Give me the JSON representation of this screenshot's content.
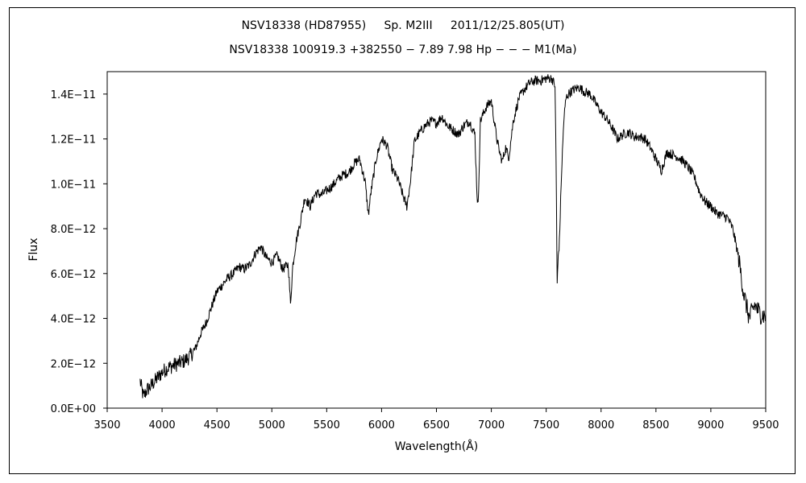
{
  "chart_data": {
    "type": "line",
    "title": "NSV18338 (HD87955)     Sp. M2III     2011/12/25.805(UT)",
    "subtitle": "NSV18338 100919.3 +382550 − 7.89 7.98 Hp − − − M1(Ma)",
    "xlabel": "Wavelength(Å)",
    "ylabel": "Flux",
    "xlim": [
      3500,
      9500
    ],
    "ylim": [
      0,
      1.5e-11
    ],
    "x_ticks": [
      3500,
      4000,
      4500,
      5000,
      5500,
      6000,
      6500,
      7000,
      7500,
      8000,
      8500,
      9000,
      9500
    ],
    "x_tick_labels": [
      "3500",
      "4000",
      "4500",
      "5000",
      "5500",
      "6000",
      "6500",
      "7000",
      "7500",
      "8000",
      "8500",
      "9000",
      "9500"
    ],
    "y_ticks": [
      0,
      2e-12,
      4e-12,
      6e-12,
      8e-12,
      1e-11,
      1.2e-11,
      1.4e-11
    ],
    "y_tick_labels": [
      "0.0E+00",
      "2.0E−12",
      "4.0E−12",
      "6.0E−12",
      "8.0E−12",
      "1.0E−11",
      "1.2E−11",
      "1.4E−11"
    ],
    "grid": false,
    "series": [
      {
        "x": [
          3800,
          3830,
          3860,
          3900,
          3950,
          4000,
          4050,
          4100,
          4150,
          4200,
          4250,
          4300,
          4350,
          4400,
          4450,
          4500,
          4550,
          4600,
          4650,
          4700,
          4750,
          4800,
          4850,
          4900,
          4950,
          5000,
          5050,
          5100,
          5150,
          5170,
          5190,
          5220,
          5260,
          5300,
          5350,
          5400,
          5450,
          5500,
          5550,
          5600,
          5650,
          5700,
          5750,
          5800,
          5850,
          5880,
          5900,
          5950,
          6000,
          6050,
          6100,
          6150,
          6200,
          6230,
          6260,
          6300,
          6350,
          6400,
          6450,
          6500,
          6550,
          6600,
          6650,
          6700,
          6750,
          6800,
          6850,
          6870,
          6880,
          6900,
          6950,
          7000,
          7050,
          7080,
          7100,
          7130,
          7160,
          7200,
          7250,
          7300,
          7350,
          7400,
          7450,
          7500,
          7550,
          7580,
          7590,
          7600,
          7610,
          7620,
          7640,
          7660,
          7680,
          7700,
          7750,
          7800,
          7850,
          7900,
          7950,
          8000,
          8050,
          8100,
          8150,
          8200,
          8250,
          8300,
          8350,
          8400,
          8450,
          8500,
          8550,
          8600,
          8650,
          8700,
          8750,
          8800,
          8850,
          8900,
          8950,
          9000,
          9050,
          9100,
          9150,
          9200,
          9250,
          9300,
          9350,
          9400,
          9450,
          9500
        ],
        "values": [
          1.2e-12,
          5e-13,
          8e-13,
          1e-12,
          1.3e-12,
          1.6e-12,
          1.8e-12,
          1.9e-12,
          2e-12,
          2.1e-12,
          2.3e-12,
          2.6e-12,
          3.3e-12,
          3.8e-12,
          4.5e-12,
          5.2e-12,
          5.5e-12,
          5.8e-12,
          6e-12,
          6.3e-12,
          6.2e-12,
          6.4e-12,
          6.9e-12,
          7.2e-12,
          6.7e-12,
          6.5e-12,
          6.8e-12,
          6.2e-12,
          6.4e-12,
          4.6e-12,
          6.3e-12,
          7.4e-12,
          8.3e-12,
          9.4e-12,
          9e-12,
          9.6e-12,
          9.5e-12,
          9.7e-12,
          9.9e-12,
          1.02e-11,
          1.04e-11,
          1.05e-11,
          1.09e-11,
          1.11e-11,
          1.01e-11,
          8.6e-12,
          9.5e-12,
          1.11e-11,
          1.2e-11,
          1.17e-11,
          1.06e-11,
          1.02e-11,
          9.4e-12,
          9e-12,
          1e-11,
          1.19e-11,
          1.23e-11,
          1.26e-11,
          1.28e-11,
          1.27e-11,
          1.3e-11,
          1.26e-11,
          1.24e-11,
          1.22e-11,
          1.26e-11,
          1.28e-11,
          1.22e-11,
          9.5e-12,
          9e-12,
          1.28e-11,
          1.34e-11,
          1.37e-11,
          1.2e-11,
          1.13e-11,
          1.1e-11,
          1.16e-11,
          1.12e-11,
          1.28e-11,
          1.38e-11,
          1.42e-11,
          1.45e-11,
          1.46e-11,
          1.46e-11,
          1.47e-11,
          1.47e-11,
          1.44e-11,
          1.1e-11,
          5.5e-12,
          6.8e-12,
          7.4e-12,
          1.05e-11,
          1.28e-11,
          1.38e-11,
          1.4e-11,
          1.42e-11,
          1.43e-11,
          1.41e-11,
          1.4e-11,
          1.36e-11,
          1.32e-11,
          1.29e-11,
          1.25e-11,
          1.2e-11,
          1.22e-11,
          1.23e-11,
          1.21e-11,
          1.21e-11,
          1.2e-11,
          1.16e-11,
          1.11e-11,
          1.06e-11,
          1.14e-11,
          1.13e-11,
          1.12e-11,
          1.1e-11,
          1.07e-11,
          1.03e-11,
          9.6e-12,
          9.2e-12,
          9e-12,
          8.7e-12,
          8.6e-12,
          8.5e-12,
          8e-12,
          6.8e-12,
          5.1e-12,
          4e-12,
          4.6e-12,
          4.2e-12,
          4.1e-12
        ]
      }
    ]
  }
}
